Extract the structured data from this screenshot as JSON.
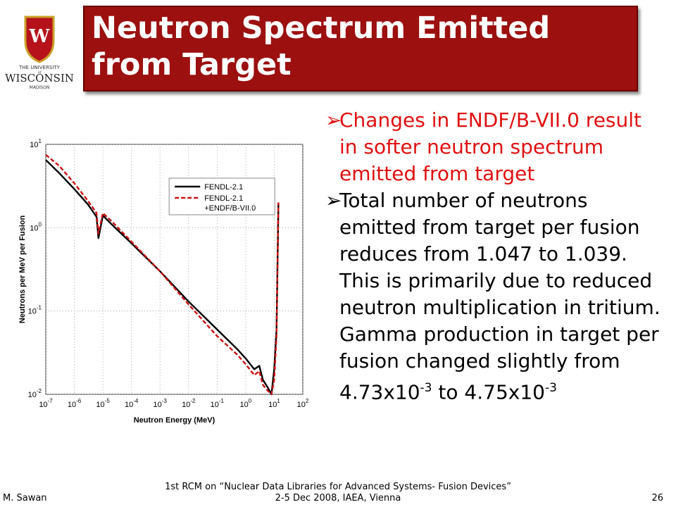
{
  "header": {
    "title_line1": "Neutron Spectrum Emitted",
    "title_line2": "from Target",
    "logo": {
      "text_top": "THE UNIVERSITY",
      "text_of": "of",
      "text_main": "WISCONSIN",
      "text_bottom": "MADISON",
      "crest_letter": "W",
      "icon": "crest-icon"
    },
    "bar_color": "#9c1010"
  },
  "bullets": [
    {
      "arrow": "➢",
      "text": "Changes in ENDF/B-VII.0 result in softer neutron spectrum emitted from target",
      "color": "#e01010"
    },
    {
      "arrow": "➢",
      "text_parts": [
        "Total number of neutrons emitted from target per fusion reduces from 1.047 to 1.039. This is primarily due to reduced neutron multiplication in tritium. Gamma production in target per fusion changed slightly from 4.73x10",
        "-3",
        " to 4.75x10",
        "-3"
      ],
      "color": "#000000"
    }
  ],
  "chart_data": {
    "type": "line",
    "xlabel": "Neutron Energy (MeV)",
    "ylabel": "Neutrons per MeV per Fusion",
    "xscale": "log",
    "yscale": "log",
    "xlim": [
      1e-07,
      100
    ],
    "ylim": [
      0.01,
      10
    ],
    "x_tick_labels": [
      "10^-7",
      "10^-6",
      "10^-5",
      "10^-4",
      "10^-3",
      "10^-2",
      "10^-1",
      "10^0",
      "10^1",
      "10^2"
    ],
    "y_tick_labels": [
      "10^-2",
      "10^-1",
      "10^0",
      "10^1"
    ],
    "legend_position": "top-right",
    "series": [
      {
        "name": "FENDL-2.1",
        "style": "solid",
        "color": "#000000",
        "x": [
          1e-07,
          3e-07,
          1e-06,
          3e-06,
          6e-06,
          7e-06,
          1e-05,
          2e-05,
          0.0001,
          0.001,
          0.01,
          0.1,
          0.5,
          1,
          2,
          3,
          4,
          6,
          8,
          10,
          12,
          14
        ],
        "y": [
          6.5,
          4.5,
          2.9,
          1.9,
          1.35,
          0.75,
          1.4,
          1.1,
          0.65,
          0.3,
          0.13,
          0.06,
          0.035,
          0.027,
          0.02,
          0.022,
          0.015,
          0.012,
          0.01,
          0.02,
          0.06,
          2.0
        ]
      },
      {
        "name": "FENDL-2.1 +ENDF/B-VII.0",
        "style": "dashed",
        "color": "#cc1111",
        "x": [
          1e-07,
          3e-07,
          1e-06,
          3e-06,
          6e-06,
          7e-06,
          1e-05,
          2e-05,
          0.0001,
          0.001,
          0.01,
          0.1,
          0.5,
          1,
          2,
          3,
          4,
          6,
          8,
          10,
          12,
          14
        ],
        "y": [
          7.5,
          5.5,
          3.4,
          2.1,
          1.5,
          0.85,
          1.5,
          1.2,
          0.68,
          0.3,
          0.12,
          0.05,
          0.03,
          0.023,
          0.017,
          0.019,
          0.013,
          0.011,
          0.01,
          0.015,
          0.05,
          2.0
        ]
      }
    ],
    "legend_labels": [
      "FENDL-2.1",
      "FENDL-2.1",
      "+ENDF/B-VII.0"
    ]
  },
  "footer": {
    "author": "M. Sawan",
    "event_line1": "1st RCM on “Nuclear Data Libraries for Advanced Systems- Fusion Devices”",
    "event_line2": "2-5 Dec 2008, IAEA, Vienna",
    "page": "26"
  }
}
